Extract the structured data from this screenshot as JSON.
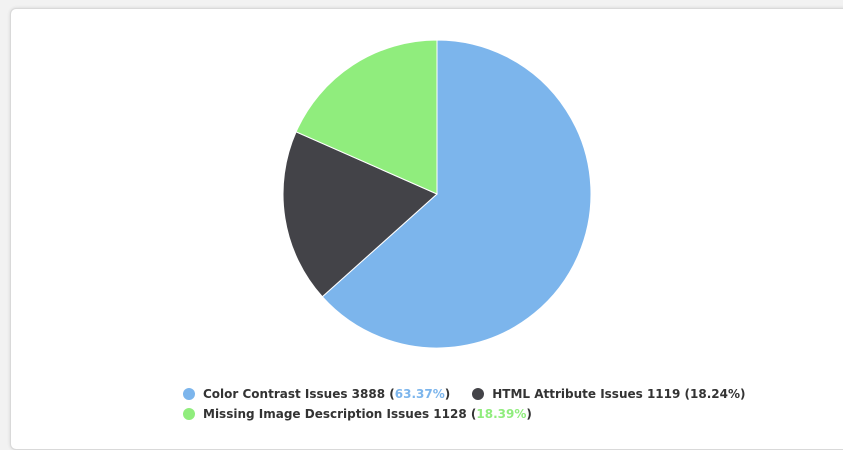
{
  "chart_data": {
    "type": "pie",
    "title": "",
    "slices": [
      {
        "label": "Color Contrast Issues",
        "value": 3888,
        "percent": "63.37%",
        "color": "#7cb5ec"
      },
      {
        "label": "HTML Attribute Issues",
        "value": 1119,
        "percent": "18.24%",
        "color": "#434348"
      },
      {
        "label": "Missing Image Description Issues",
        "value": 1128,
        "percent": "18.39%",
        "color": "#90ed7d"
      }
    ],
    "legend_placement": "bottom"
  },
  "legend": {
    "items": [
      {
        "label": "Color Contrast Issues",
        "count": "3888",
        "percent": "63.37%",
        "color": "#7cb5ec",
        "percent_color": "#7cb5ec"
      },
      {
        "label": "HTML Attribute Issues",
        "count": "1119",
        "percent": "18.24%",
        "color": "#434348",
        "percent_color": "#333333"
      },
      {
        "label": "Missing Image Description Issues",
        "count": "1128",
        "percent": "18.39%",
        "color": "#90ed7d",
        "percent_color": "#90ed7d"
      }
    ]
  }
}
